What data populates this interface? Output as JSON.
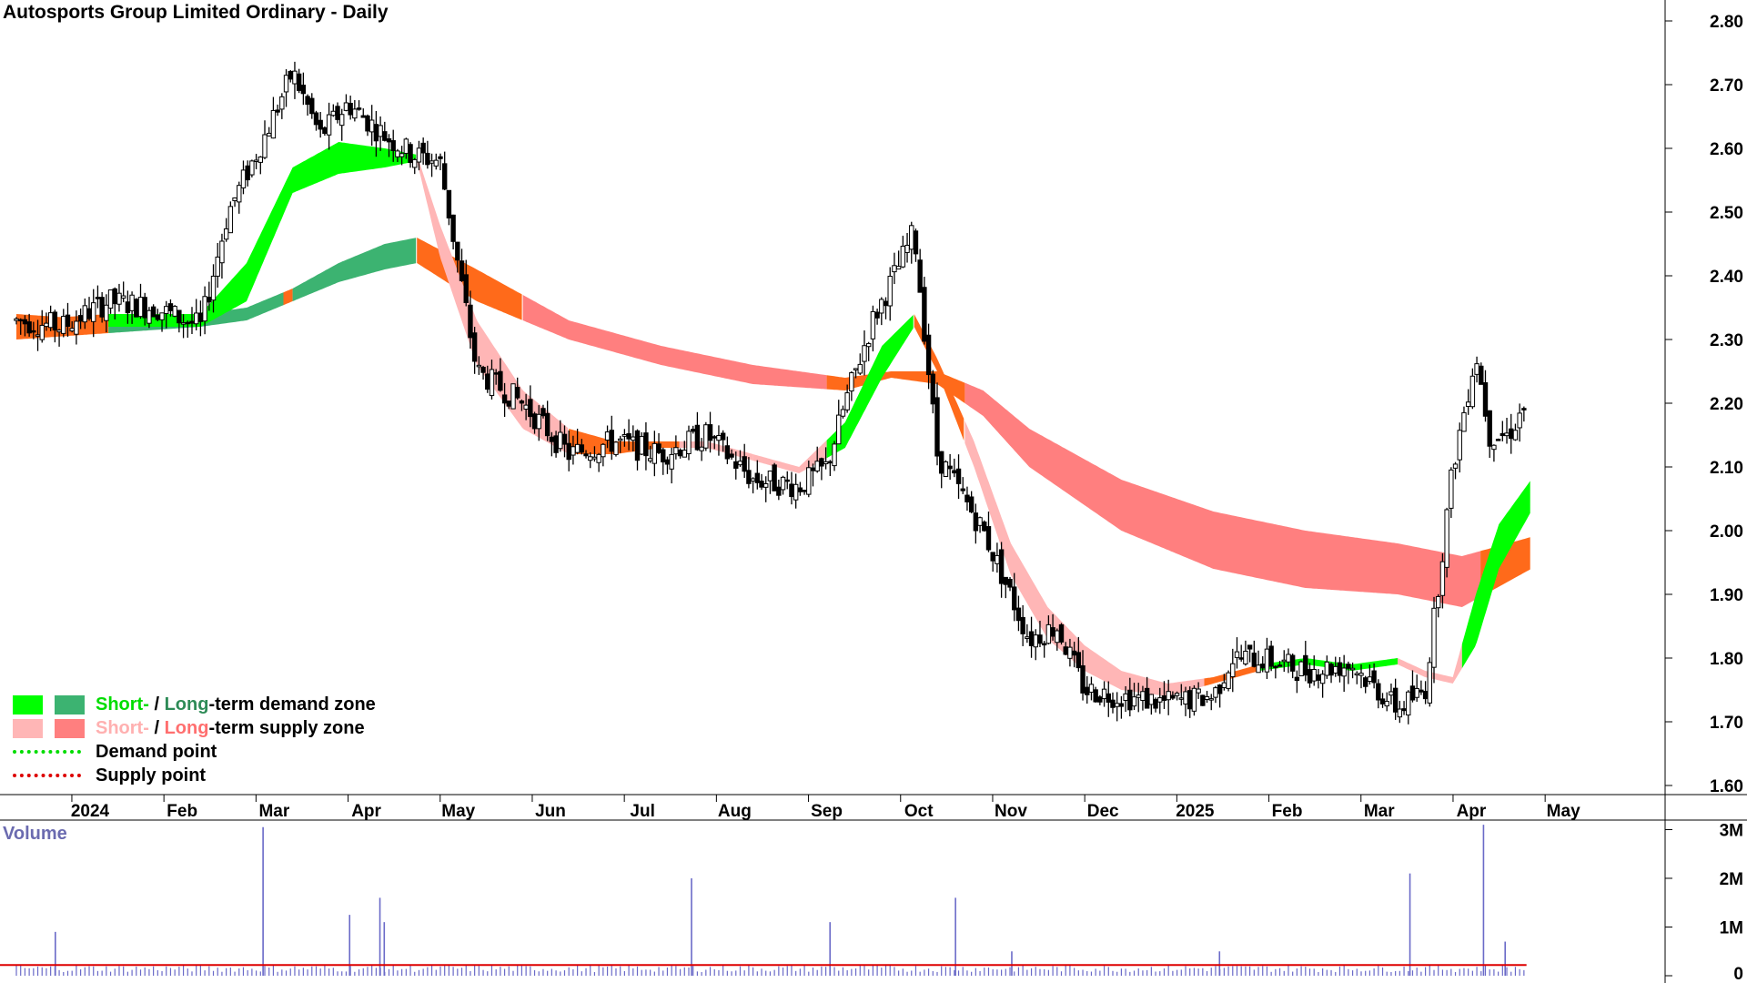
{
  "title": "Autosports Group Limited Ordinary - Daily",
  "volume_label": "Volume",
  "legend": {
    "demand_short": "Short-",
    "demand_sep": " / ",
    "demand_long": "Long",
    "demand_rest": "-term demand zone",
    "supply_short": "Short-",
    "supply_sep": " / ",
    "supply_long": "Long",
    "supply_rest": "-term supply zone",
    "demand_point": "Demand point",
    "supply_point": "Supply point"
  },
  "colors": {
    "short_demand": "#00ff00",
    "long_demand": "#3cb371",
    "short_supply": "#ffb6b6",
    "long_supply": "#ff7f7f",
    "neutral_zone": "#ff6a1a",
    "demand_point": "#00dd00",
    "supply_point": "#dd0000",
    "volume_bar": "#6a6ac8",
    "volume_avg": "#dd0000"
  },
  "chart_data": {
    "type": "candlestick",
    "title": "Autosports Group Limited Ordinary - Daily",
    "price_axis": {
      "ylim": [
        1.55,
        2.82
      ],
      "ticks": [
        "2.80",
        "2.70",
        "2.60",
        "2.50",
        "2.40",
        "2.30",
        "2.20",
        "2.10",
        "2.00",
        "1.90",
        "1.80",
        "1.70",
        "1.60"
      ]
    },
    "time_axis": {
      "labels": [
        "2024",
        "Feb",
        "Mar",
        "Apr",
        "May",
        "Jun",
        "Jul",
        "Aug",
        "Sep",
        "Oct",
        "Nov",
        "Dec",
        "2025",
        "Feb",
        "Mar",
        "Apr",
        "May"
      ]
    },
    "price_path": {
      "x_month_index": [
        0.0,
        0.5,
        1.0,
        1.5,
        2.0,
        2.3,
        2.7,
        3.0,
        3.3,
        3.6,
        4.0,
        4.3,
        4.6,
        5.0,
        5.5,
        6.0,
        6.5,
        7.0,
        7.5,
        8.0,
        8.5,
        8.8,
        9.0,
        9.3,
        9.6,
        9.75,
        10.0,
        10.5,
        11.0,
        11.3,
        11.6,
        12.0,
        12.5,
        13.0,
        13.2,
        13.5,
        14.0,
        14.5,
        15.0,
        15.3,
        15.6,
        15.85,
        16.0,
        16.2,
        16.4
      ],
      "price": [
        2.33,
        2.32,
        2.36,
        2.35,
        2.32,
        2.5,
        2.62,
        2.72,
        2.62,
        2.67,
        2.62,
        2.59,
        2.58,
        2.25,
        2.2,
        2.12,
        2.14,
        2.12,
        2.15,
        2.08,
        2.07,
        2.1,
        2.2,
        2.33,
        2.42,
        2.47,
        2.12,
        2.0,
        1.83,
        1.85,
        1.75,
        1.74,
        1.73,
        1.74,
        1.8,
        1.8,
        1.78,
        1.79,
        1.72,
        1.75,
        2.1,
        2.28,
        2.15,
        2.15,
        2.2
      ]
    },
    "short_term_band": {
      "x_month_index": [
        0,
        1,
        2,
        2.5,
        3,
        3.5,
        4,
        4.35,
        4.6,
        5.0,
        5.5,
        6.0,
        6.5,
        7.0,
        7.5,
        8.0,
        8.5,
        9.0,
        9.4,
        9.75,
        10.0,
        10.4,
        10.8,
        11.2,
        11.6,
        12.0,
        12.5,
        13.0,
        13.5,
        14.0,
        14.5,
        15.0,
        15.3,
        15.6,
        15.85,
        16.1,
        16.45
      ],
      "upper": [
        2.33,
        2.34,
        2.34,
        2.42,
        2.57,
        2.61,
        2.6,
        2.59,
        2.48,
        2.33,
        2.22,
        2.16,
        2.14,
        2.14,
        2.14,
        2.12,
        2.1,
        2.17,
        2.29,
        2.34,
        2.27,
        2.14,
        1.98,
        1.88,
        1.82,
        1.78,
        1.76,
        1.77,
        1.79,
        1.8,
        1.79,
        1.8,
        1.78,
        1.77,
        1.9,
        2.01,
        2.08
      ],
      "lower": [
        2.31,
        2.32,
        2.32,
        2.36,
        2.53,
        2.56,
        2.57,
        2.58,
        2.43,
        2.26,
        2.16,
        2.12,
        2.12,
        2.13,
        2.13,
        2.11,
        2.09,
        2.13,
        2.24,
        2.32,
        2.25,
        2.1,
        1.93,
        1.83,
        1.78,
        1.75,
        1.74,
        1.76,
        1.78,
        1.79,
        1.78,
        1.79,
        1.77,
        1.76,
        1.82,
        1.94,
        2.03
      ],
      "zones": [
        {
          "from": 0,
          "to": 1.0,
          "kind": "neutral"
        },
        {
          "from": 1.0,
          "to": 2.0,
          "kind": "short_demand"
        },
        {
          "from": 2.0,
          "to": 4.35,
          "kind": "short_demand"
        },
        {
          "from": 4.35,
          "to": 6.0,
          "kind": "short_supply"
        },
        {
          "from": 6.0,
          "to": 7.2,
          "kind": "neutral"
        },
        {
          "from": 7.2,
          "to": 8.0,
          "kind": "short_supply"
        },
        {
          "from": 8.0,
          "to": 8.8,
          "kind": "short_supply"
        },
        {
          "from": 8.8,
          "to": 9.75,
          "kind": "short_demand"
        },
        {
          "from": 9.75,
          "to": 10.3,
          "kind": "neutral"
        },
        {
          "from": 10.3,
          "to": 12.9,
          "kind": "short_supply"
        },
        {
          "from": 12.9,
          "to": 13.5,
          "kind": "neutral"
        },
        {
          "from": 13.5,
          "to": 15.0,
          "kind": "short_demand"
        },
        {
          "from": 15.0,
          "to": 15.7,
          "kind": "short_supply"
        },
        {
          "from": 15.7,
          "to": 16.45,
          "kind": "short_demand"
        }
      ]
    },
    "long_term_band": {
      "x_month_index": [
        0,
        1,
        2,
        2.5,
        3,
        3.5,
        4,
        4.35,
        5.0,
        6.0,
        7.0,
        8.0,
        9.0,
        9.5,
        10.0,
        10.5,
        11.0,
        12.0,
        13.0,
        14.0,
        15.0,
        15.7,
        16.45
      ],
      "upper": [
        2.34,
        2.33,
        2.34,
        2.35,
        2.38,
        2.42,
        2.45,
        2.46,
        2.41,
        2.33,
        2.29,
        2.26,
        2.24,
        2.25,
        2.25,
        2.22,
        2.16,
        2.08,
        2.03,
        2.0,
        1.98,
        1.96,
        1.99
      ],
      "lower": [
        2.3,
        2.31,
        2.32,
        2.33,
        2.36,
        2.39,
        2.41,
        2.42,
        2.36,
        2.3,
        2.26,
        2.23,
        2.22,
        2.24,
        2.23,
        2.18,
        2.1,
        2.0,
        1.94,
        1.91,
        1.9,
        1.88,
        1.94
      ],
      "zones": [
        {
          "from": 0,
          "to": 1.0,
          "kind": "neutral"
        },
        {
          "from": 1.0,
          "to": 2.9,
          "kind": "long_demand"
        },
        {
          "from": 2.9,
          "to": 3.0,
          "kind": "neutral"
        },
        {
          "from": 3.0,
          "to": 4.35,
          "kind": "long_demand"
        },
        {
          "from": 4.35,
          "to": 5.5,
          "kind": "neutral"
        },
        {
          "from": 5.5,
          "to": 8.8,
          "kind": "long_supply"
        },
        {
          "from": 8.8,
          "to": 10.3,
          "kind": "neutral"
        },
        {
          "from": 10.3,
          "to": 15.9,
          "kind": "long_supply"
        },
        {
          "from": 15.9,
          "to": 16.45,
          "kind": "neutral"
        }
      ]
    },
    "volume": {
      "ylim": [
        0,
        3300000
      ],
      "ticks": [
        "3M",
        "2M",
        "1M",
        "0"
      ],
      "tick_values": [
        3000000,
        2000000,
        1000000,
        0
      ],
      "typical": 150000,
      "spikes": [
        {
          "x_month_index": 0.45,
          "value": 900000
        },
        {
          "x_month_index": 2.85,
          "value": 3050000
        },
        {
          "x_month_index": 3.85,
          "value": 1250000
        },
        {
          "x_month_index": 4.2,
          "value": 1600000
        },
        {
          "x_month_index": 4.25,
          "value": 1100000
        },
        {
          "x_month_index": 7.8,
          "value": 2000000
        },
        {
          "x_month_index": 9.4,
          "value": 1100000
        },
        {
          "x_month_index": 10.85,
          "value": 1600000
        },
        {
          "x_month_index": 11.5,
          "value": 500000
        },
        {
          "x_month_index": 13.9,
          "value": 500000
        },
        {
          "x_month_index": 16.1,
          "value": 2100000
        },
        {
          "x_month_index": 16.95,
          "value": 3100000
        },
        {
          "x_month_index": 17.2,
          "value": 700000
        }
      ],
      "average_level": 220000
    }
  }
}
